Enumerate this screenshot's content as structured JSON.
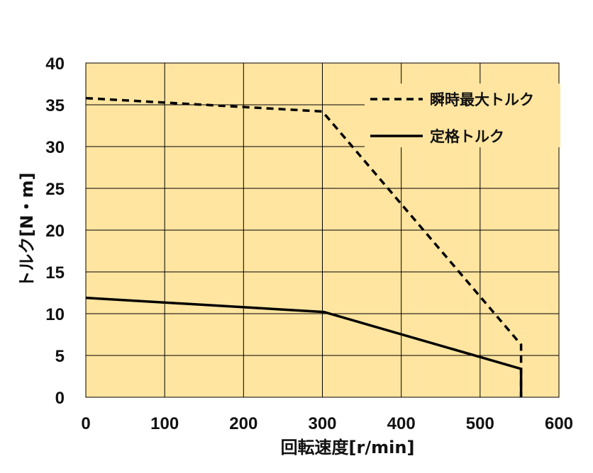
{
  "chart_data": {
    "type": "line",
    "xlabel": "回転速度[r/min]",
    "ylabel": "トルク[N・m]",
    "xlim": [
      0,
      600
    ],
    "ylim": [
      0,
      40
    ],
    "xticks": [
      "0",
      "100",
      "200",
      "300",
      "400",
      "500",
      "600"
    ],
    "yticks": [
      "0",
      "5",
      "10",
      "15",
      "20",
      "25",
      "30",
      "35",
      "40"
    ],
    "grid": true,
    "legend_position": "top-right",
    "background_color": "#FFE5A0",
    "series": [
      {
        "name": "瞬時最大トルク",
        "style": "dashed",
        "color": "#000000",
        "points": [
          [
            0,
            35.8
          ],
          [
            300,
            34.2
          ],
          [
            552,
            6.3
          ],
          [
            552,
            0
          ]
        ]
      },
      {
        "name": "定格トルク",
        "style": "solid",
        "color": "#000000",
        "points": [
          [
            0,
            11.9
          ],
          [
            302,
            10.2
          ],
          [
            552,
            3.4
          ],
          [
            552,
            0
          ]
        ]
      }
    ]
  }
}
